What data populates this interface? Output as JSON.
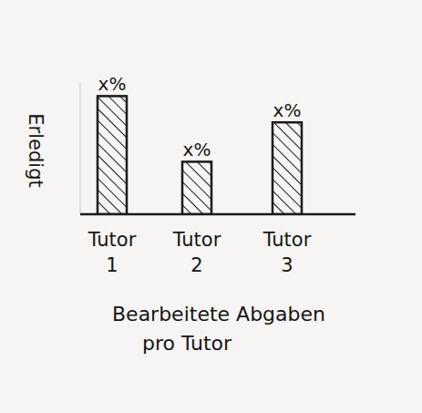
{
  "chart_data": {
    "type": "bar",
    "y_label": "Erledigt",
    "x_label": "Bearbeitete Abgaben pro Tutor",
    "categories": [
      "Tutor 1",
      "Tutor 2",
      "Tutor 3"
    ],
    "values": [
      90,
      40,
      70
    ],
    "value_labels": [
      "x%",
      "x%",
      "x%"
    ],
    "data_labels": true,
    "color": "#1a1a1a",
    "ylim": [
      0,
      100
    ],
    "tick_labels": "x",
    "grid": false
  }
}
